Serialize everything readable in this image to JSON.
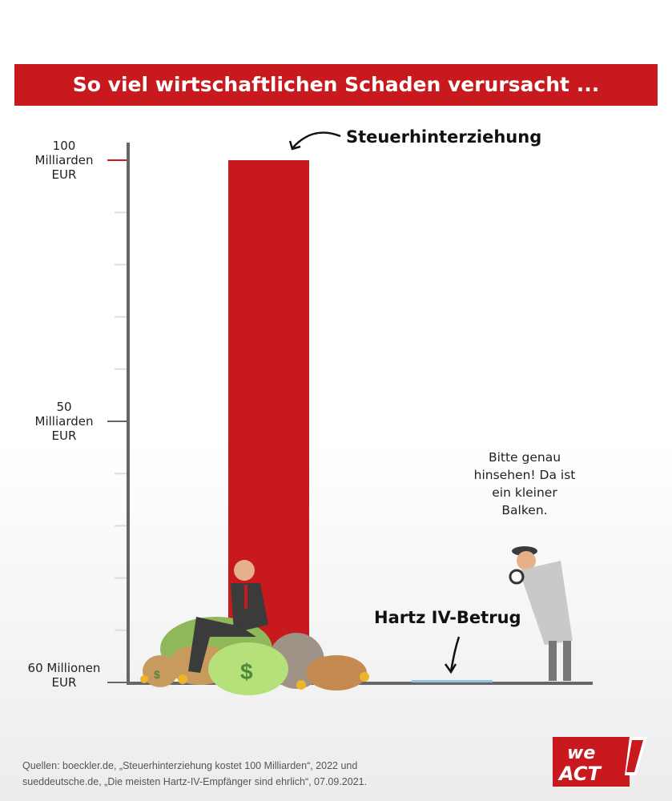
{
  "title": "So viel wirtschaftlichen Schaden verursacht ...",
  "chart_data": {
    "type": "bar",
    "title": "So viel wirtschaftlichen Schaden verursacht ...",
    "categories": [
      "Steuerhinterziehung",
      "Hartz IV-Betrug"
    ],
    "values": [
      100,
      0.06
    ],
    "unit": "Milliarden EUR",
    "ylim": [
      0,
      100
    ],
    "y_ticks": [
      {
        "value": 100,
        "label": [
          "100",
          "Milliarden",
          "EUR"
        ]
      },
      {
        "value": 50,
        "label": [
          "50",
          "Milliarden",
          "EUR"
        ]
      },
      {
        "value": 0.06,
        "label": [
          "60 Millionen",
          "EUR"
        ]
      }
    ],
    "minor_ticks": [
      10,
      20,
      30,
      40,
      60,
      70,
      80,
      90
    ],
    "colors": {
      "Steuerhinterziehung": "#c8191e",
      "Hartz IV-Betrug": "#8fc3e0",
      "axis": "#666666"
    },
    "annotations": {
      "bar1": "Steuerhinterziehung",
      "bar2": "Hartz IV-Betrug",
      "speech": [
        "Bitte genau",
        "hinsehen! Da ist",
        "ein kleiner",
        "Balken."
      ]
    },
    "grid": false
  },
  "sources": [
    "Quellen: boeckler.de, „Steuerhinterziehung kostet 100 Milliarden“, 2022 und",
    "sueddeutsche.de, „Die meisten Hartz-IV-Empfänger sind ehrlich“, 07.09.2021."
  ],
  "logo": {
    "line1": "we",
    "line2": "ACT",
    "color": "#c8191e"
  }
}
